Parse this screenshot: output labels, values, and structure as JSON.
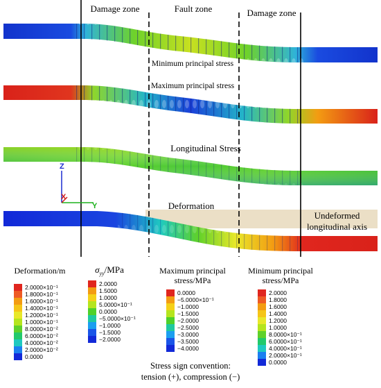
{
  "zones": {
    "damage_left": "Damage zone",
    "fault": "Fault zone",
    "damage_right": "Damage zone"
  },
  "pipes": {
    "min_stress_label": "Minimum principal stress",
    "max_stress_label": "Maximum principal stress",
    "longitudinal_label": "Longitudinal Stress",
    "deformation_label": "Deformation",
    "undeformed_axis_label": [
      "Undeformed",
      "longitudinal axis"
    ]
  },
  "axes_triad": {
    "z": "Z",
    "x": "X",
    "y": "Y"
  },
  "legends": [
    {
      "id": "deformation",
      "title": [
        "Deformation/m"
      ],
      "colors": [
        "#e0261e",
        "#ee5a24",
        "#f39c12",
        "#f5c518",
        "#e8e82a",
        "#b5e51d",
        "#5fd12a",
        "#22c96b",
        "#1fc9c0",
        "#1b7ff0",
        "#1229d8"
      ],
      "ticks": [
        "2.0000×10⁻¹",
        "1.8000×10⁻¹",
        "1.6000×10⁻¹",
        "1.4000×10⁻¹",
        "1.2000×10⁻¹",
        "1.0000×10⁻¹",
        "8.0000×10⁻²",
        "6.0000×10⁻²",
        "4.0000×10⁻²",
        "2.0000×10⁻²",
        "0.0000"
      ]
    },
    {
      "id": "syy",
      "title": [
        "σyy/MPa"
      ],
      "colors": [
        "#e0261e",
        "#f39c12",
        "#f5d118",
        "#b5e51d",
        "#4fd12a",
        "#1fc9a0",
        "#1b9ff0",
        "#1a55e8",
        "#1229d8"
      ],
      "ticks": [
        "2.0000",
        "1.5000",
        "1.0000",
        "5.0000×10⁻¹",
        "0.0000",
        "−5.0000×10⁻¹",
        "−1.0000",
        "−1.5000",
        "−2.0000"
      ]
    },
    {
      "id": "max_principal",
      "title": [
        "Maximum principal",
        "stress/MPa"
      ],
      "colors": [
        "#e0261e",
        "#f39c12",
        "#f5d118",
        "#b5e51d",
        "#4fd12a",
        "#1fc9a0",
        "#1b9ff0",
        "#1a55e8",
        "#1229d8"
      ],
      "ticks": [
        "0.0000",
        "−5.0000×10⁻¹",
        "−1.0000",
        "−1.5000",
        "−2.0000",
        "−2.5000",
        "−3.0000",
        "−3.5000",
        "−4.0000"
      ]
    },
    {
      "id": "min_principal",
      "title": [
        "Minimum principal",
        "stress/MPa"
      ],
      "colors": [
        "#e0261e",
        "#ee5a24",
        "#f39c12",
        "#f5c518",
        "#e8e82a",
        "#b5e51d",
        "#5fd12a",
        "#22c96b",
        "#1fc9c0",
        "#1b7ff0",
        "#1229d8"
      ],
      "ticks": [
        "2.0000",
        "1.8000",
        "1.6000",
        "1.4000",
        "1.2000",
        "1.0000",
        "8.0000×10⁻¹",
        "6.0000×10⁻¹",
        "4.0000×10⁻¹",
        "2.0000×10⁻¹",
        "0.0000"
      ]
    }
  ],
  "footer": [
    "Stress sign convention:",
    "tension (+), compression (−)"
  ]
}
